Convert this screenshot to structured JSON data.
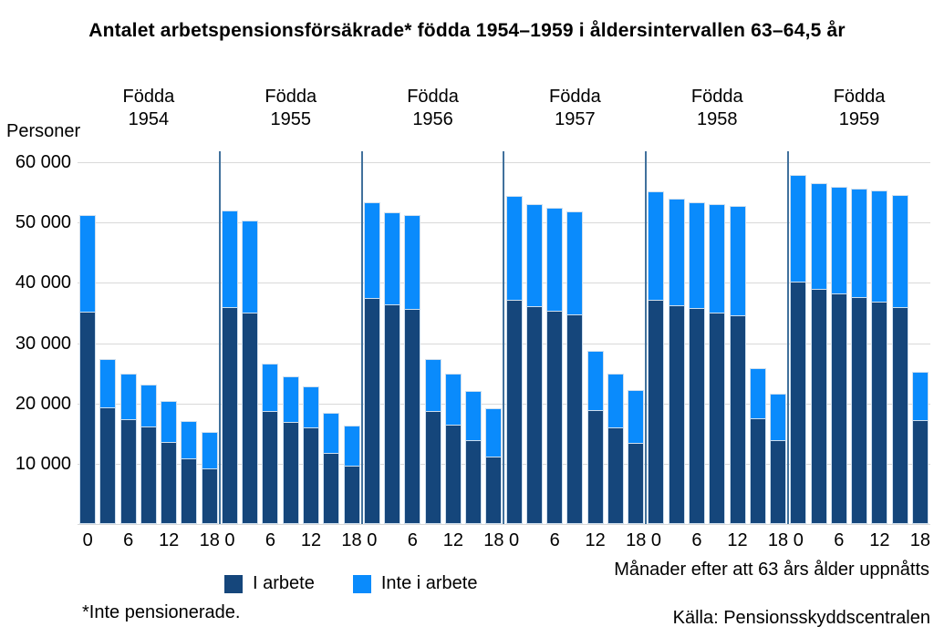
{
  "footnote": "*Inte pensionerade.",
  "source": "Källa: Pensionsskyddscentralen",
  "colors": {
    "i_arbete": "#15467B",
    "inte_i_arbete": "#0A8BFC",
    "separator": "#41719C",
    "gridline": "#D9D9D9",
    "bar_outline": "#CFDFEE",
    "text": "#000000"
  },
  "chart_data": {
    "type": "bar",
    "stacked": true,
    "title": "Antalet arbetspensionsförsäkrade* födda 1954–1959 i åldersintervallen 63–64,5 år",
    "ylabel": "Personer",
    "xlabel": "Månader efter att 63 års ålder uppnåtts",
    "ylim": [
      0,
      60000
    ],
    "grid": true,
    "yticks": [
      60000,
      50000,
      40000,
      30000,
      20000,
      10000
    ],
    "ytick_labels": [
      "60 000",
      "50 000",
      "40 000",
      "30 000",
      "20 000",
      "10 000"
    ],
    "months_after_63": [
      0,
      3,
      6,
      9,
      12,
      15,
      18
    ],
    "x_tick_labels_shown": [
      "0",
      "6",
      "12",
      "18"
    ],
    "legend": [
      {
        "label": "I arbete",
        "color": "#15467B"
      },
      {
        "label": "Inte i arbete",
        "color": "#0A8BFC"
      }
    ],
    "panels": [
      {
        "cohort": "Födda 1954",
        "i_arbete": [
          35000,
          19200,
          17200,
          16000,
          13400,
          10700,
          9100
        ],
        "inte_i_arbete": [
          16300,
          8100,
          7700,
          7200,
          7000,
          6400,
          6100
        ],
        "total": [
          51300,
          27300,
          24900,
          23200,
          20400,
          17100,
          15200
        ]
      },
      {
        "cohort": "Födda 1955",
        "i_arbete": [
          35800,
          34900,
          18600,
          16800,
          15800,
          11700,
          9500
        ],
        "inte_i_arbete": [
          16200,
          15500,
          8000,
          7700,
          7100,
          6800,
          6800
        ],
        "total": [
          52000,
          50400,
          26600,
          24500,
          22900,
          18500,
          16300
        ]
      },
      {
        "cohort": "Födda 1956",
        "i_arbete": [
          37300,
          36200,
          35500,
          18600,
          16400,
          13800,
          11100
        ],
        "inte_i_arbete": [
          16000,
          15500,
          15700,
          8700,
          8500,
          8200,
          8100
        ],
        "total": [
          53300,
          51700,
          51200,
          27300,
          24900,
          22000,
          19200
        ]
      },
      {
        "cohort": "Födda 1957",
        "i_arbete": [
          37000,
          35900,
          35200,
          34600,
          18800,
          15800,
          13300
        ],
        "inte_i_arbete": [
          17400,
          17100,
          17300,
          17300,
          9900,
          9100,
          8900
        ],
        "total": [
          54400,
          53000,
          52500,
          51900,
          28700,
          24900,
          22200
        ]
      },
      {
        "cohort": "Födda 1958",
        "i_arbete": [
          37000,
          36100,
          35600,
          34900,
          34400,
          17400,
          13800
        ],
        "inte_i_arbete": [
          18100,
          17800,
          17800,
          18100,
          18400,
          8400,
          7800
        ],
        "total": [
          55100,
          53900,
          53400,
          53000,
          52800,
          25800,
          21600
        ]
      },
      {
        "cohort": "Födda 1959",
        "i_arbete": [
          40000,
          38900,
          38100,
          37500,
          36800,
          35800,
          17100
        ],
        "inte_i_arbete": [
          17900,
          17700,
          17800,
          18100,
          18500,
          18800,
          8200
        ],
        "total": [
          57900,
          56600,
          55900,
          55600,
          55300,
          54600,
          25300
        ]
      }
    ]
  }
}
